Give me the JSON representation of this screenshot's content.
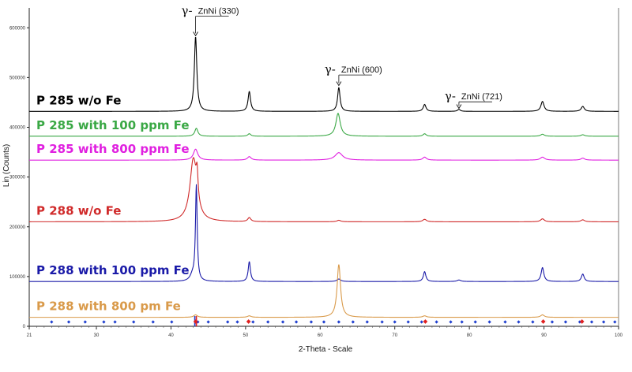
{
  "chart_data": {
    "type": "line",
    "title": "",
    "xlabel": "2-Theta - Scale",
    "ylabel": "Lin (Counts)",
    "xlim": [
      21,
      100
    ],
    "ylim": [
      0,
      640000
    ],
    "x_ticks": [
      "21",
      "30",
      "40",
      "50",
      "60",
      "70",
      "80",
      "90",
      "100"
    ],
    "y_ticks": [
      "0",
      "100000",
      "200000",
      "300000",
      "400000",
      "500000",
      "600000"
    ],
    "y_tick_values": [
      0,
      100000,
      200000,
      300000,
      400000,
      500000,
      600000
    ],
    "grid": false,
    "legend": "inline labels",
    "series": [
      {
        "name": "P 285 w/o Fe",
        "color": "#000000",
        "baseline": 432000,
        "peaks": [
          [
            43.3,
            150000,
            0.2
          ],
          [
            50.5,
            40000,
            0.2
          ],
          [
            62.5,
            48000,
            0.2
          ],
          [
            74.0,
            14000,
            0.22
          ],
          [
            78.6,
            4000,
            0.22
          ],
          [
            89.8,
            20000,
            0.25
          ],
          [
            95.2,
            10000,
            0.25
          ]
        ]
      },
      {
        "name": "P 285 with 100 ppm Fe",
        "color": "#3aa845",
        "baseline": 382000,
        "peaks": [
          [
            43.4,
            16000,
            0.25
          ],
          [
            50.5,
            5000,
            0.25
          ],
          [
            62.4,
            46000,
            0.35
          ],
          [
            74.0,
            5000,
            0.25
          ],
          [
            89.8,
            4000,
            0.3
          ],
          [
            95.2,
            3000,
            0.3
          ]
        ]
      },
      {
        "name": "P 285 with 800 ppm Fe",
        "color": "#e020e0",
        "baseline": 334000,
        "peaks": [
          [
            43.3,
            22000,
            0.35
          ],
          [
            50.5,
            7000,
            0.3
          ],
          [
            62.5,
            15000,
            0.6
          ],
          [
            74.0,
            6000,
            0.3
          ],
          [
            89.8,
            6000,
            0.35
          ],
          [
            95.2,
            4000,
            0.3
          ]
        ]
      },
      {
        "name": "P 288 w/o Fe",
        "color": "#d02a2a",
        "baseline": 210000,
        "peaks": [
          [
            43.0,
            125000,
            0.55
          ],
          [
            43.5,
            50000,
            0.15
          ],
          [
            50.5,
            8000,
            0.25
          ],
          [
            62.5,
            3000,
            0.3
          ],
          [
            74.0,
            5000,
            0.3
          ],
          [
            89.8,
            6000,
            0.3
          ],
          [
            95.2,
            4000,
            0.3
          ]
        ]
      },
      {
        "name": "P 288 with 100 ppm Fe",
        "color": "#1a1aa8",
        "baseline": 90000,
        "peaks": [
          [
            42.9,
            12000,
            0.4
          ],
          [
            43.4,
            190000,
            0.14
          ],
          [
            50.5,
            40000,
            0.18
          ],
          [
            62.5,
            5000,
            0.3
          ],
          [
            74.0,
            20000,
            0.2
          ],
          [
            78.6,
            3000,
            0.3
          ],
          [
            89.8,
            28000,
            0.22
          ],
          [
            95.2,
            15000,
            0.22
          ]
        ]
      },
      {
        "name": "P 288 with 800 pm Fe",
        "color": "#d99a4a",
        "baseline": 18000,
        "peaks": [
          [
            43.3,
            5000,
            0.3
          ],
          [
            50.5,
            3000,
            0.3
          ],
          [
            62.5,
            106000,
            0.28
          ],
          [
            74.0,
            3000,
            0.3
          ],
          [
            89.8,
            5000,
            0.3
          ]
        ]
      }
    ],
    "reference_markers": {
      "blue": [
        24.0,
        26.3,
        28.5,
        31.0,
        32.5,
        35.0,
        37.6,
        40.1,
        43.6,
        45.0,
        47.6,
        48.9,
        51.0,
        53.0,
        55.0,
        56.8,
        58.8,
        60.5,
        62.5,
        64.4,
        66.3,
        68.3,
        70.0,
        71.8,
        73.6,
        75.6,
        77.5,
        79.0,
        80.8,
        82.7,
        84.8,
        86.6,
        88.5,
        91.1,
        92.9,
        94.8,
        96.4,
        98.0,
        99.5
      ],
      "red": [
        43.3,
        50.4,
        74.1,
        89.9,
        95.1
      ],
      "red_stems": [
        43.3
      ]
    },
    "annotations": [
      {
        "gamma": "γ-",
        "text": "ZnNi (330)",
        "x": 43.3,
        "arrow_from": 620000,
        "arrow_to": 584000
      },
      {
        "gamma": "γ-",
        "text": "ZnNi (600)",
        "x": 62.5,
        "arrow_from": 502000,
        "arrow_to": 484000
      },
      {
        "gamma": "γ-",
        "text": "ZnNi (721)",
        "x": 78.6,
        "arrow_from": 448000,
        "arrow_to": 438000
      }
    ]
  }
}
